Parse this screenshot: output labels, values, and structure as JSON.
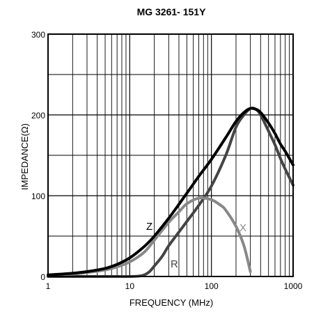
{
  "chart_data": {
    "type": "line",
    "title": "MG 3261-  151Y",
    "xlabel": "FREQUENCY (MHz)",
    "ylabel": "IMPEDANCE(Ω)",
    "xscale": "log",
    "xlim": [
      1,
      1000
    ],
    "ylim": [
      0,
      300
    ],
    "x_ticks": [
      1,
      10,
      100,
      1000
    ],
    "x_tick_labels": [
      "1",
      "10",
      "100",
      "1000"
    ],
    "y_ticks": [
      0,
      100,
      200,
      300
    ],
    "y_tick_labels": [
      "0",
      "100",
      "200",
      "300"
    ],
    "grid": true,
    "series": [
      {
        "name": "Z",
        "color": "#000000",
        "x": [
          1,
          1.5,
          2,
          3,
          5,
          7,
          10,
          15,
          20,
          30,
          50,
          70,
          100,
          150,
          200,
          250,
          300,
          350,
          400,
          500,
          600,
          700,
          800,
          1000
        ],
        "values": [
          2,
          3,
          4,
          6,
          10,
          15,
          23,
          37,
          50,
          72,
          103,
          124,
          145,
          172,
          192,
          203,
          208,
          207,
          203,
          190,
          177,
          164,
          155,
          138
        ]
      },
      {
        "name": "R",
        "color": "#444444",
        "x": [
          1,
          5,
          10,
          14,
          17,
          20,
          25,
          30,
          40,
          50,
          70,
          100,
          150,
          200,
          250,
          300,
          350,
          400,
          500,
          600,
          700,
          800,
          1000
        ],
        "values": [
          0,
          0,
          0,
          1,
          5,
          13,
          25,
          38,
          55,
          68,
          88,
          112,
          150,
          185,
          200,
          208,
          207,
          200,
          180,
          163,
          146,
          133,
          113
        ]
      },
      {
        "name": "X",
        "color": "#888888",
        "x": [
          1,
          2,
          3,
          5,
          7,
          10,
          15,
          20,
          30,
          40,
          50,
          70,
          100,
          130,
          150,
          200,
          250,
          300
        ],
        "values": [
          2,
          3,
          5,
          8,
          12,
          18,
          30,
          45,
          67,
          80,
          90,
          97,
          95,
          88,
          82,
          62,
          38,
          6
        ]
      }
    ],
    "curve_labels": [
      "Z",
      "R",
      "X"
    ]
  }
}
